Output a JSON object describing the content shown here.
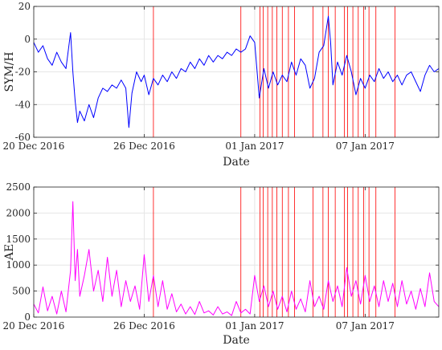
{
  "chart_data": [
    {
      "type": "line",
      "ylabel": "SYM/H",
      "xlabel": "Date",
      "ylim": [
        -60,
        20
      ],
      "yticks": [
        20,
        0,
        -20,
        -40,
        -60
      ],
      "xlim": [
        "2016-12-20",
        "2017-01-11"
      ],
      "xticks": [
        {
          "date": "2016-12-20",
          "label": "20 Dec 2016"
        },
        {
          "date": "2016-12-26",
          "label": "26 Dec 2016"
        },
        {
          "date": "2017-01-01",
          "label": "01 Jan 2017"
        },
        {
          "date": "2017-01-07",
          "label": "07 Jan 2017"
        }
      ],
      "grid": true,
      "series": [
        {
          "color": "#0000ff",
          "points": [
            [
              "2016-12-20T00:00",
              -2
            ],
            [
              "2016-12-20T06:00",
              -8
            ],
            [
              "2016-12-20T12:00",
              -4
            ],
            [
              "2016-12-20T18:00",
              -12
            ],
            [
              "2016-12-21T00:00",
              -16
            ],
            [
              "2016-12-21T06:00",
              -8
            ],
            [
              "2016-12-21T12:00",
              -14
            ],
            [
              "2016-12-21T18:00",
              -18
            ],
            [
              "2016-12-22T00:00",
              4
            ],
            [
              "2016-12-22T03:00",
              -20
            ],
            [
              "2016-12-22T06:00",
              -38
            ],
            [
              "2016-12-22T09:00",
              -51
            ],
            [
              "2016-12-22T12:00",
              -44
            ],
            [
              "2016-12-22T18:00",
              -50
            ],
            [
              "2016-12-23T00:00",
              -40
            ],
            [
              "2016-12-23T06:00",
              -48
            ],
            [
              "2016-12-23T12:00",
              -36
            ],
            [
              "2016-12-23T18:00",
              -30
            ],
            [
              "2016-12-24T00:00",
              -32
            ],
            [
              "2016-12-24T06:00",
              -28
            ],
            [
              "2016-12-24T12:00",
              -30
            ],
            [
              "2016-12-24T18:00",
              -25
            ],
            [
              "2016-12-25T00:00",
              -30
            ],
            [
              "2016-12-25T04:00",
              -54
            ],
            [
              "2016-12-25T08:00",
              -33
            ],
            [
              "2016-12-25T14:00",
              -20
            ],
            [
              "2016-12-25T20:00",
              -26
            ],
            [
              "2016-12-26T00:00",
              -22
            ],
            [
              "2016-12-26T06:00",
              -34
            ],
            [
              "2016-12-26T12:00",
              -24
            ],
            [
              "2016-12-26T18:00",
              -28
            ],
            [
              "2016-12-27T00:00",
              -22
            ],
            [
              "2016-12-27T06:00",
              -26
            ],
            [
              "2016-12-27T12:00",
              -20
            ],
            [
              "2016-12-27T18:00",
              -24
            ],
            [
              "2016-12-28T00:00",
              -18
            ],
            [
              "2016-12-28T06:00",
              -20
            ],
            [
              "2016-12-28T12:00",
              -14
            ],
            [
              "2016-12-28T18:00",
              -18
            ],
            [
              "2016-12-29T00:00",
              -12
            ],
            [
              "2016-12-29T06:00",
              -16
            ],
            [
              "2016-12-29T12:00",
              -10
            ],
            [
              "2016-12-29T18:00",
              -14
            ],
            [
              "2016-12-30T00:00",
              -10
            ],
            [
              "2016-12-30T06:00",
              -12
            ],
            [
              "2016-12-30T12:00",
              -8
            ],
            [
              "2016-12-30T18:00",
              -10
            ],
            [
              "2016-12-31T00:00",
              -6
            ],
            [
              "2016-12-31T06:00",
              -8
            ],
            [
              "2016-12-31T12:00",
              -6
            ],
            [
              "2016-12-31T18:00",
              2
            ],
            [
              "2017-01-01T00:00",
              -2
            ],
            [
              "2017-01-01T06:00",
              -36
            ],
            [
              "2017-01-01T12:00",
              -18
            ],
            [
              "2017-01-01T18:00",
              -30
            ],
            [
              "2017-01-02T00:00",
              -20
            ],
            [
              "2017-01-02T06:00",
              -28
            ],
            [
              "2017-01-02T12:00",
              -22
            ],
            [
              "2017-01-02T18:00",
              -26
            ],
            [
              "2017-01-03T00:00",
              -14
            ],
            [
              "2017-01-03T06:00",
              -22
            ],
            [
              "2017-01-03T12:00",
              -12
            ],
            [
              "2017-01-03T18:00",
              -16
            ],
            [
              "2017-01-04T00:00",
              -30
            ],
            [
              "2017-01-04T06:00",
              -24
            ],
            [
              "2017-01-04T12:00",
              -8
            ],
            [
              "2017-01-04T18:00",
              -4
            ],
            [
              "2017-01-05T00:00",
              14
            ],
            [
              "2017-01-05T03:00",
              -2
            ],
            [
              "2017-01-05T06:00",
              -28
            ],
            [
              "2017-01-05T12:00",
              -14
            ],
            [
              "2017-01-05T18:00",
              -22
            ],
            [
              "2017-01-06T00:00",
              -10
            ],
            [
              "2017-01-06T06:00",
              -20
            ],
            [
              "2017-01-06T12:00",
              -34
            ],
            [
              "2017-01-06T18:00",
              -24
            ],
            [
              "2017-01-07T00:00",
              -30
            ],
            [
              "2017-01-07T06:00",
              -22
            ],
            [
              "2017-01-07T12:00",
              -26
            ],
            [
              "2017-01-07T18:00",
              -18
            ],
            [
              "2017-01-08T00:00",
              -24
            ],
            [
              "2017-01-08T06:00",
              -20
            ],
            [
              "2017-01-08T12:00",
              -26
            ],
            [
              "2017-01-08T18:00",
              -22
            ],
            [
              "2017-01-09T00:00",
              -28
            ],
            [
              "2017-01-09T06:00",
              -22
            ],
            [
              "2017-01-09T12:00",
              -20
            ],
            [
              "2017-01-09T18:00",
              -26
            ],
            [
              "2017-01-10T00:00",
              -32
            ],
            [
              "2017-01-10T06:00",
              -22
            ],
            [
              "2017-01-10T12:00",
              -16
            ],
            [
              "2017-01-10T18:00",
              -20
            ],
            [
              "2017-01-11T00:00",
              -18
            ]
          ]
        }
      ]
    },
    {
      "type": "line",
      "ylabel": "AE",
      "xlabel": "Date",
      "ylim": [
        0,
        2500
      ],
      "yticks": [
        2500,
        2000,
        1500,
        1000,
        500,
        0
      ],
      "xlim": [
        "2016-12-20",
        "2017-01-11"
      ],
      "xticks": [
        {
          "date": "2016-12-20",
          "label": "20 Dec 2016"
        },
        {
          "date": "2016-12-26",
          "label": "26 Dec 2016"
        },
        {
          "date": "2017-01-01",
          "label": "01 Jan 2017"
        },
        {
          "date": "2017-01-07",
          "label": "07 Jan 2017"
        }
      ],
      "grid": true,
      "series": [
        {
          "color": "#ff00ff",
          "points": [
            [
              "2016-12-20T00:00",
              250
            ],
            [
              "2016-12-20T06:00",
              80
            ],
            [
              "2016-12-20T12:00",
              580
            ],
            [
              "2016-12-20T18:00",
              120
            ],
            [
              "2016-12-21T00:00",
              400
            ],
            [
              "2016-12-21T06:00",
              60
            ],
            [
              "2016-12-21T12:00",
              500
            ],
            [
              "2016-12-21T18:00",
              100
            ],
            [
              "2016-12-22T00:00",
              900
            ],
            [
              "2016-12-22T03:00",
              2220
            ],
            [
              "2016-12-22T06:00",
              700
            ],
            [
              "2016-12-22T09:00",
              1300
            ],
            [
              "2016-12-22T12:00",
              400
            ],
            [
              "2016-12-22T18:00",
              800
            ],
            [
              "2016-12-23T00:00",
              1300
            ],
            [
              "2016-12-23T06:00",
              500
            ],
            [
              "2016-12-23T12:00",
              900
            ],
            [
              "2016-12-23T18:00",
              300
            ],
            [
              "2016-12-24T00:00",
              1150
            ],
            [
              "2016-12-24T06:00",
              400
            ],
            [
              "2016-12-24T12:00",
              900
            ],
            [
              "2016-12-24T18:00",
              200
            ],
            [
              "2016-12-25T00:00",
              700
            ],
            [
              "2016-12-25T06:00",
              300
            ],
            [
              "2016-12-25T12:00",
              600
            ],
            [
              "2016-12-25T18:00",
              150
            ],
            [
              "2016-12-26T00:00",
              1200
            ],
            [
              "2016-12-26T06:00",
              300
            ],
            [
              "2016-12-26T12:00",
              800
            ],
            [
              "2016-12-26T18:00",
              200
            ],
            [
              "2016-12-27T00:00",
              700
            ],
            [
              "2016-12-27T06:00",
              150
            ],
            [
              "2016-12-27T12:00",
              450
            ],
            [
              "2016-12-27T18:00",
              100
            ],
            [
              "2016-12-28T00:00",
              250
            ],
            [
              "2016-12-28T06:00",
              60
            ],
            [
              "2016-12-28T12:00",
              200
            ],
            [
              "2016-12-28T18:00",
              50
            ],
            [
              "2016-12-29T00:00",
              300
            ],
            [
              "2016-12-29T06:00",
              80
            ],
            [
              "2016-12-29T12:00",
              120
            ],
            [
              "2016-12-29T18:00",
              40
            ],
            [
              "2016-12-30T00:00",
              200
            ],
            [
              "2016-12-30T06:00",
              60
            ],
            [
              "2016-12-30T12:00",
              100
            ],
            [
              "2016-12-30T18:00",
              30
            ],
            [
              "2016-12-31T00:00",
              300
            ],
            [
              "2016-12-31T06:00",
              80
            ],
            [
              "2016-12-31T12:00",
              150
            ],
            [
              "2016-12-31T18:00",
              60
            ],
            [
              "2017-01-01T00:00",
              800
            ],
            [
              "2017-01-01T06:00",
              300
            ],
            [
              "2017-01-01T12:00",
              600
            ],
            [
              "2017-01-01T18:00",
              200
            ],
            [
              "2017-01-02T00:00",
              500
            ],
            [
              "2017-01-02T06:00",
              150
            ],
            [
              "2017-01-02T12:00",
              400
            ],
            [
              "2017-01-02T18:00",
              100
            ],
            [
              "2017-01-03T00:00",
              500
            ],
            [
              "2017-01-03T06:00",
              150
            ],
            [
              "2017-01-03T12:00",
              350
            ],
            [
              "2017-01-03T18:00",
              100
            ],
            [
              "2017-01-04T00:00",
              700
            ],
            [
              "2017-01-04T06:00",
              200
            ],
            [
              "2017-01-04T12:00",
              400
            ],
            [
              "2017-01-04T18:00",
              150
            ],
            [
              "2017-01-05T00:00",
              700
            ],
            [
              "2017-01-05T06:00",
              300
            ],
            [
              "2017-01-05T12:00",
              600
            ],
            [
              "2017-01-05T18:00",
              200
            ],
            [
              "2017-01-06T00:00",
              950
            ],
            [
              "2017-01-06T06:00",
              400
            ],
            [
              "2017-01-06T12:00",
              700
            ],
            [
              "2017-01-06T18:00",
              250
            ],
            [
              "2017-01-07T00:00",
              800
            ],
            [
              "2017-01-07T06:00",
              300
            ],
            [
              "2017-01-07T12:00",
              600
            ],
            [
              "2017-01-07T18:00",
              200
            ],
            [
              "2017-01-08T00:00",
              700
            ],
            [
              "2017-01-08T06:00",
              300
            ],
            [
              "2017-01-08T12:00",
              650
            ],
            [
              "2017-01-08T18:00",
              200
            ],
            [
              "2017-01-09T00:00",
              700
            ],
            [
              "2017-01-09T06:00",
              250
            ],
            [
              "2017-01-09T12:00",
              500
            ],
            [
              "2017-01-09T18:00",
              150
            ],
            [
              "2017-01-10T00:00",
              550
            ],
            [
              "2017-01-10T06:00",
              200
            ],
            [
              "2017-01-10T12:00",
              850
            ],
            [
              "2017-01-10T18:00",
              300
            ],
            [
              "2017-01-11T00:00",
              200
            ]
          ]
        }
      ]
    }
  ],
  "event_lines": {
    "color": "#ff0000",
    "times": [
      "2016-12-26T12:00",
      "2016-12-31T06:00",
      "2017-01-01T07:00",
      "2017-01-01T11:00",
      "2017-01-01T17:00",
      "2017-01-01T23:00",
      "2017-01-02T05:00",
      "2017-01-02T12:00",
      "2017-01-02T20:00",
      "2017-01-03T04:00",
      "2017-01-04T04:00",
      "2017-01-04T17:00",
      "2017-01-05T00:00",
      "2017-01-05T09:00",
      "2017-01-05T21:00",
      "2017-01-06T01:00",
      "2017-01-06T08:00",
      "2017-01-06T15:00",
      "2017-01-06T22:00",
      "2017-01-07T05:00",
      "2017-01-07T14:00",
      "2017-01-08T15:00"
    ]
  }
}
